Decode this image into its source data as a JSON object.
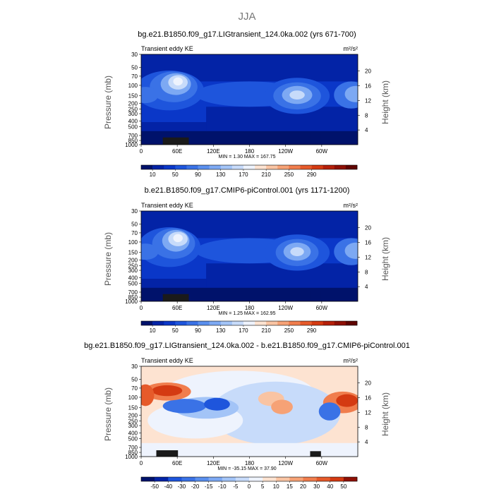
{
  "figure": {
    "title": "JJA"
  },
  "chart_data": [
    {
      "type": "heatmap",
      "title": "bg.e21.B1850.f09_g17.LIGtransient_124.0ka.002 (yrs 671-700)",
      "left_label": "Transient eddy KE",
      "units": "m²/s²",
      "ylabel": "Pressure (mb)",
      "ylabel_right": "Height (km)",
      "x_ticks": [
        "0",
        "60E",
        "120E",
        "180",
        "120W",
        "60W"
      ],
      "y_ticks": [
        "30",
        "50",
        "70",
        "100",
        "150",
        "200",
        "250",
        "300",
        "400",
        "500",
        "700",
        "850",
        "1000"
      ],
      "height_ticks": [
        "20",
        "16",
        "12",
        "8",
        "4"
      ],
      "minmax": "MIN =    1.30   MAX = 167.75",
      "colorbar": {
        "labels": [
          "10",
          "50",
          "90",
          "130",
          "170",
          "210",
          "250",
          "290"
        ],
        "colors": [
          "#00126b",
          "#0323a6",
          "#0a37c8",
          "#1e55dc",
          "#3a72e6",
          "#5a8fee",
          "#7da9f3",
          "#a3c4f7",
          "#c7dbfa",
          "#eef3fd",
          "#fde3d1",
          "#f9c4a3",
          "#f6a276",
          "#f07d4d",
          "#e65a2a",
          "#d43a12",
          "#b5200a",
          "#8e1005",
          "#600500"
        ]
      }
    },
    {
      "type": "heatmap",
      "title": "b.e21.B1850.f09_g17.CMIP6-piControl.001 (yrs 1171-1200)",
      "left_label": "Transient eddy KE",
      "units": "m²/s²",
      "ylabel": "Pressure (mb)",
      "ylabel_right": "Height (km)",
      "x_ticks": [
        "0",
        "60E",
        "120E",
        "180",
        "120W",
        "60W"
      ],
      "y_ticks": [
        "30",
        "50",
        "70",
        "100",
        "150",
        "200",
        "250",
        "300",
        "400",
        "500",
        "700",
        "850",
        "1000"
      ],
      "height_ticks": [
        "20",
        "16",
        "12",
        "8",
        "4"
      ],
      "minmax": "MIN =    1.25   MAX = 162.95",
      "colorbar": {
        "labels": [
          "10",
          "50",
          "90",
          "130",
          "170",
          "210",
          "250",
          "290"
        ],
        "colors": [
          "#00126b",
          "#0323a6",
          "#0a37c8",
          "#1e55dc",
          "#3a72e6",
          "#5a8fee",
          "#7da9f3",
          "#a3c4f7",
          "#c7dbfa",
          "#eef3fd",
          "#fde3d1",
          "#f9c4a3",
          "#f6a276",
          "#f07d4d",
          "#e65a2a",
          "#d43a12",
          "#b5200a",
          "#8e1005",
          "#600500"
        ]
      }
    },
    {
      "type": "heatmap",
      "title": "bg.e21.B1850.f09_g17.LIGtransient_124.0ka.002 - b.e21.B1850.f09_g17.CMIP6-piControl.001",
      "left_label": "Transient eddy KE",
      "units": "m²/s²",
      "ylabel": "Pressure (mb)",
      "ylabel_right": "Height (km)",
      "x_ticks": [
        "0",
        "60E",
        "120E",
        "180",
        "120W",
        "60W"
      ],
      "y_ticks": [
        "30",
        "50",
        "70",
        "100",
        "150",
        "200",
        "250",
        "300",
        "400",
        "500",
        "700",
        "850",
        "1000"
      ],
      "height_ticks": [
        "20",
        "16",
        "12",
        "8",
        "4"
      ],
      "minmax": "MIN =  -35.15   MAX =  37.90",
      "colorbar": {
        "labels": [
          "-50",
          "-40",
          "-30",
          "-20",
          "-15",
          "-10",
          "-5",
          "0",
          "5",
          "10",
          "15",
          "20",
          "30",
          "40",
          "50"
        ],
        "colors": [
          "#00126b",
          "#0323a6",
          "#1e55dc",
          "#3a72e6",
          "#5a8fee",
          "#7da9f3",
          "#a3c4f7",
          "#c7dbfa",
          "#eef3fd",
          "#fde3d1",
          "#f9c4a3",
          "#f6a276",
          "#f07d4d",
          "#e65a2a",
          "#d43a12",
          "#8e1005"
        ]
      }
    }
  ]
}
